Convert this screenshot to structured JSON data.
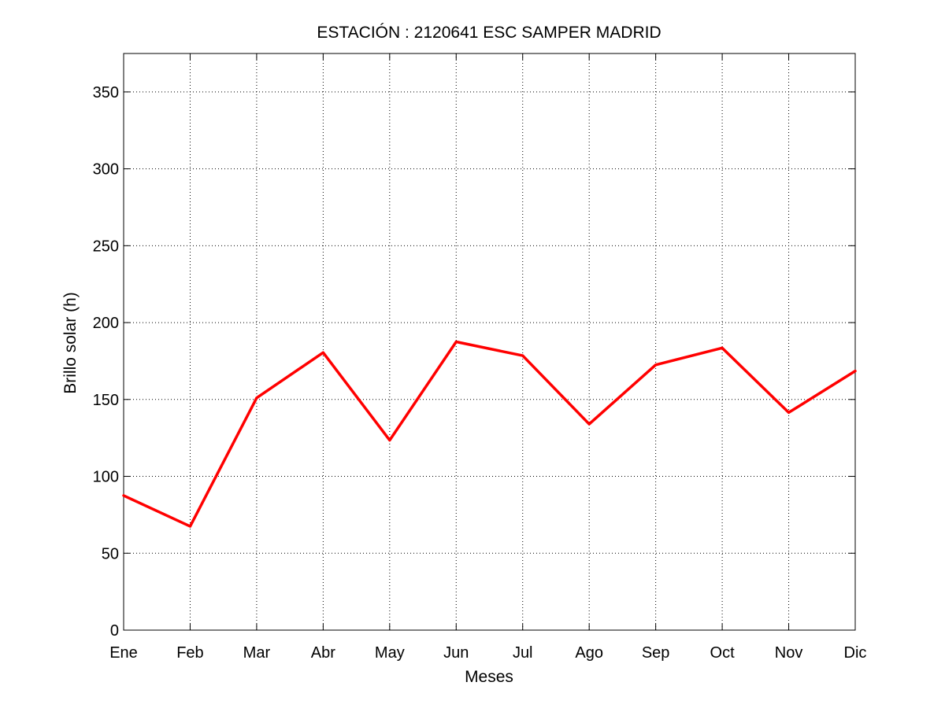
{
  "chart_data": {
    "type": "line",
    "title": "ESTACIÓN :  2120641  ESC SAMPER MADRID",
    "xlabel": "Meses",
    "ylabel": "Brillo solar (h)",
    "categories": [
      "Ene",
      "Feb",
      "Mar",
      "Abr",
      "May",
      "Jun",
      "Jul",
      "Ago",
      "Sep",
      "Oct",
      "Nov",
      "Dic"
    ],
    "series": [
      {
        "values": [
          87.5,
          67.5,
          151,
          180.5,
          123.5,
          187.5,
          178.5,
          134,
          172.5,
          183.5,
          141.5,
          168.5
        ],
        "color": "#ff0000"
      }
    ],
    "ylim": [
      0,
      375
    ],
    "yticks": [
      0,
      50,
      100,
      150,
      200,
      250,
      300,
      350
    ],
    "grid": true,
    "legend": "none"
  }
}
